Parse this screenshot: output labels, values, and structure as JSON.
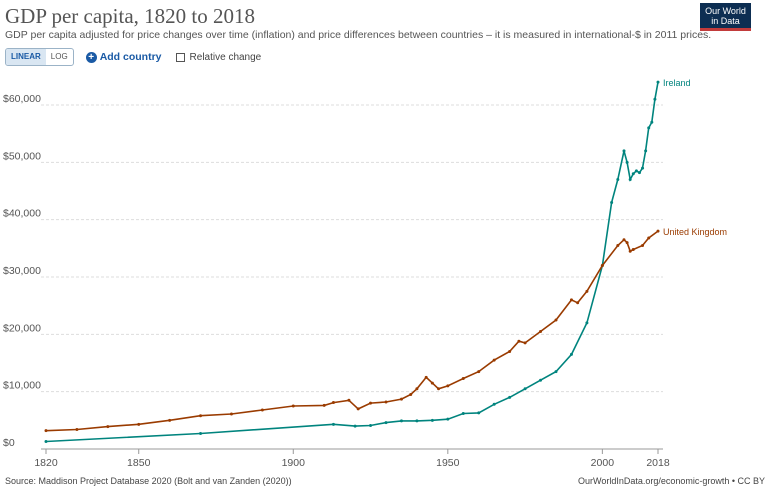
{
  "header": {
    "title": "GDP per capita, 1820 to 2018",
    "subtitle": "GDP per capita adjusted for price changes over time (inflation) and price differences between countries – it is measured in international-$ in 2011 prices.",
    "logo_line1": "Our World",
    "logo_line2": "in Data"
  },
  "controls": {
    "linear_label": "LINEAR",
    "log_label": "LOG",
    "add_country_label": "Add country",
    "relative_change_label": "Relative change"
  },
  "footer": {
    "source": "Source: Maddison Project Database 2020 (Bolt and van Zanden (2020))",
    "link": "OurWorldInData.org/economic-growth • CC BY"
  },
  "colors": {
    "ireland": "#00847e",
    "uk": "#9a3b00",
    "grid": "#dddddd",
    "axis": "#999999"
  },
  "chart_data": {
    "type": "line",
    "title": "GDP per capita, 1820 to 2018",
    "xlabel": "",
    "ylabel": "",
    "xlim": [
      1820,
      2018
    ],
    "ylim": [
      0,
      60000
    ],
    "x_ticks": [
      1820,
      1850,
      1900,
      1950,
      2000,
      2018
    ],
    "y_ticks": [
      0,
      10000,
      20000,
      30000,
      40000,
      50000,
      60000
    ],
    "y_tick_labels": [
      "$0",
      "$10,000",
      "$20,000",
      "$30,000",
      "$40,000",
      "$50,000",
      "$60,000"
    ],
    "grid": "horizontal",
    "series": [
      {
        "name": "Ireland",
        "color": "#00847e",
        "x": [
          1820,
          1870,
          1913,
          1920,
          1925,
          1930,
          1935,
          1940,
          1945,
          1950,
          1955,
          1960,
          1965,
          1970,
          1975,
          1980,
          1985,
          1990,
          1995,
          2000,
          2003,
          2005,
          2007,
          2008,
          2009,
          2010,
          2011,
          2012,
          2013,
          2014,
          2015,
          2016,
          2017,
          2018
        ],
        "values": [
          1300,
          2700,
          4300,
          4000,
          4100,
          4600,
          4900,
          4900,
          5000,
          5200,
          6200,
          6300,
          7800,
          9000,
          10500,
          12000,
          13500,
          16500,
          22000,
          32000,
          43000,
          47000,
          52000,
          50000,
          47000,
          48000,
          48500,
          48200,
          49000,
          52000,
          56000,
          57000,
          61000,
          64000
        ]
      },
      {
        "name": "United Kingdom",
        "color": "#9a3b00",
        "x": [
          1820,
          1830,
          1840,
          1850,
          1860,
          1870,
          1880,
          1890,
          1900,
          1910,
          1913,
          1918,
          1921,
          1925,
          1930,
          1935,
          1938,
          1940,
          1943,
          1945,
          1947,
          1950,
          1955,
          1960,
          1965,
          1970,
          1973,
          1975,
          1980,
          1985,
          1990,
          1992,
          1995,
          2000,
          2005,
          2007,
          2008,
          2009,
          2010,
          2013,
          2015,
          2018
        ],
        "values": [
          3200,
          3400,
          3900,
          4300,
          5000,
          5800,
          6100,
          6800,
          7500,
          7600,
          8100,
          8500,
          7000,
          8000,
          8200,
          8700,
          9500,
          10500,
          12500,
          11500,
          10500,
          11000,
          12300,
          13500,
          15500,
          17000,
          18800,
          18500,
          20500,
          22500,
          26000,
          25500,
          27500,
          32000,
          35500,
          36500,
          36000,
          34500,
          34800,
          35500,
          36800,
          38000
        ]
      }
    ]
  }
}
